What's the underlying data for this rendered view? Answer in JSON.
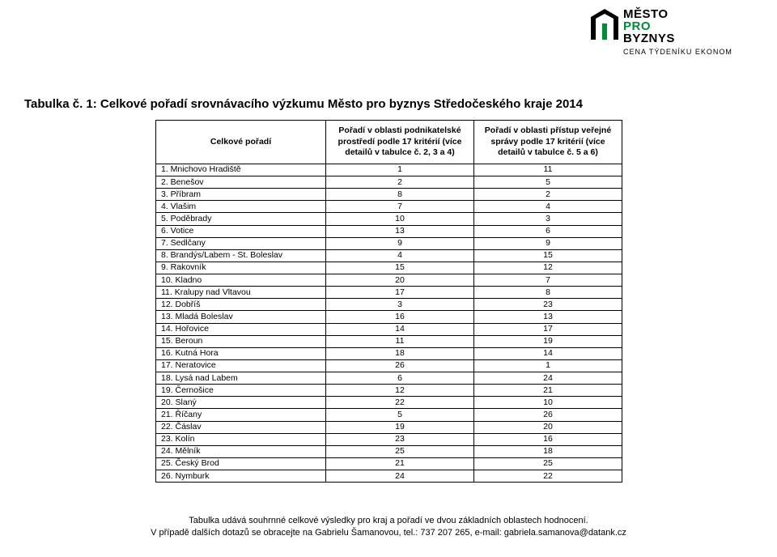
{
  "logo": {
    "line1": "MĚSTO",
    "line2": "PRO",
    "line3": "BYZNYS",
    "sub": "CENA TÝDENÍKU EKONOM",
    "green": "#008a3a",
    "black": "#000000"
  },
  "title": "Tabulka č. 1: Celkové pořadí srovnávacího výzkumu Město pro byznys Středočeského kraje 2014",
  "table": {
    "headers": {
      "c0": "Celkové pořadí",
      "c1": "Pořadí v oblasti podnikatelské prostředí podle 17 kritérií (více detailů v tabulce č. 2, 3 a 4)",
      "c2": "Pořadí v oblasti přístup veřejné správy podle 17 kritérií (více detailů v tabulce č. 5 a 6)"
    },
    "rows": [
      {
        "name": "1. Mnichovo Hradiště",
        "a": "1",
        "b": "11"
      },
      {
        "name": "2. Benešov",
        "a": "2",
        "b": "5"
      },
      {
        "name": "3. Příbram",
        "a": "8",
        "b": "2"
      },
      {
        "name": "4. Vlašim",
        "a": "7",
        "b": "4"
      },
      {
        "name": "5. Poděbrady",
        "a": "10",
        "b": "3"
      },
      {
        "name": "6. Votice",
        "a": "13",
        "b": "6"
      },
      {
        "name": "7. Sedlčany",
        "a": "9",
        "b": "9"
      },
      {
        "name": "8. Brandýs/Labem - St. Boleslav",
        "a": "4",
        "b": "15"
      },
      {
        "name": "9. Rakovník",
        "a": "15",
        "b": "12"
      },
      {
        "name": "10. Kladno",
        "a": "20",
        "b": "7"
      },
      {
        "name": "11. Kralupy nad Vltavou",
        "a": "17",
        "b": "8"
      },
      {
        "name": "12. Dobříš",
        "a": "3",
        "b": "23"
      },
      {
        "name": "13. Mladá Boleslav",
        "a": "16",
        "b": "13"
      },
      {
        "name": "14. Hořovice",
        "a": "14",
        "b": "17"
      },
      {
        "name": "15. Beroun",
        "a": "11",
        "b": "19"
      },
      {
        "name": "16. Kutná Hora",
        "a": "18",
        "b": "14"
      },
      {
        "name": "17. Neratovice",
        "a": "26",
        "b": "1"
      },
      {
        "name": "18. Lysá nad Labem",
        "a": "6",
        "b": "24"
      },
      {
        "name": "19. Černošice",
        "a": "12",
        "b": "21"
      },
      {
        "name": "20. Slaný",
        "a": "22",
        "b": "10"
      },
      {
        "name": "21. Říčany",
        "a": "5",
        "b": "26"
      },
      {
        "name": "22. Čáslav",
        "a": "19",
        "b": "20"
      },
      {
        "name": "23. Kolín",
        "a": "23",
        "b": "16"
      },
      {
        "name": "24. Mělník",
        "a": "25",
        "b": "18"
      },
      {
        "name": "25. Český Brod",
        "a": "21",
        "b": "25"
      },
      {
        "name": "26. Nymburk",
        "a": "24",
        "b": "22"
      }
    ]
  },
  "footnote": {
    "line1": "Tabulka udává souhrnné celkové výsledky pro kraj a pořadí ve dvou základních oblastech hodnocení.",
    "line2": "V případě dalších dotazů se obracejte na Gabrielu Šamanovou, tel.: 737 207 265, e-mail: gabriela.samanova@datank.cz"
  }
}
